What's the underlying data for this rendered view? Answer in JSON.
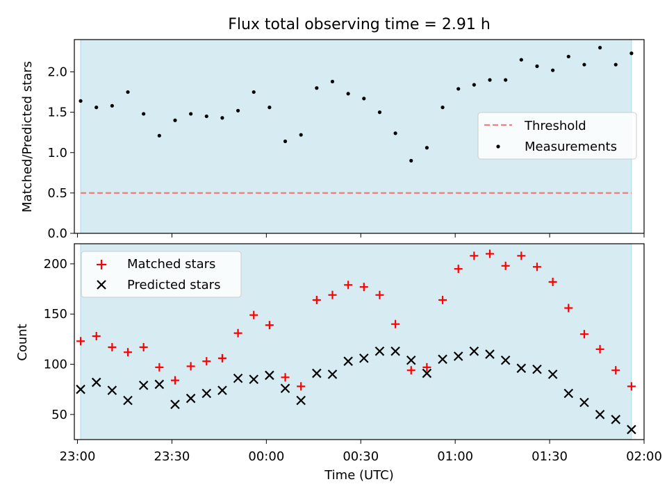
{
  "chart_data": [
    {
      "type": "scatter",
      "title": "Flux total observing time = 2.91 h",
      "xlabel": "",
      "ylabel": "Matched/Predicted stars",
      "xlim": [
        "22:59:00",
        "02:00:00"
      ],
      "ylim": [
        0,
        2.4
      ],
      "yticks": [
        "0.0",
        "0.5",
        "1.0",
        "1.5",
        "2.0"
      ],
      "x_ticks_labels_visible": false,
      "shaded_span": {
        "from": "23:01:00",
        "to": "01:56:00",
        "color": "#add8e6"
      },
      "threshold": {
        "name": "Threshold",
        "value": 0.5,
        "color": "#f08080",
        "style": "dashed"
      },
      "legend": {
        "position": "center-right",
        "entries": [
          "Threshold",
          "Measurements"
        ]
      },
      "series": [
        {
          "name": "Measurements",
          "color": "#000000",
          "marker": "dot",
          "x": [
            "23:01",
            "23:06",
            "23:11",
            "23:16",
            "23:21",
            "23:26",
            "23:31",
            "23:36",
            "23:41",
            "23:46",
            "23:51",
            "23:56",
            "00:01",
            "00:06",
            "00:11",
            "00:16",
            "00:21",
            "00:26",
            "00:31",
            "00:36",
            "00:41",
            "00:46",
            "00:51",
            "00:56",
            "01:01",
            "01:06",
            "01:11",
            "01:16",
            "01:21",
            "01:26",
            "01:31",
            "01:36",
            "01:41",
            "01:46",
            "01:51",
            "01:56"
          ],
          "y": [
            1.64,
            1.56,
            1.58,
            1.75,
            1.48,
            1.21,
            1.4,
            1.48,
            1.45,
            1.43,
            1.52,
            1.75,
            1.56,
            1.14,
            1.22,
            1.8,
            1.88,
            1.73,
            1.67,
            1.5,
            1.24,
            0.9,
            1.06,
            1.56,
            1.79,
            1.84,
            1.9,
            1.9,
            2.15,
            2.07,
            2.02,
            2.19,
            2.09,
            2.3,
            2.09,
            2.23
          ]
        }
      ]
    },
    {
      "type": "scatter",
      "title": "",
      "xlabel": "Time (UTC)",
      "ylabel": "Count",
      "xlim": [
        "22:59:00",
        "02:00:00"
      ],
      "ylim": [
        25,
        220
      ],
      "yticks": [
        "50",
        "100",
        "150",
        "200"
      ],
      "xticks": [
        "23:00",
        "23:30",
        "00:00",
        "00:30",
        "01:00",
        "01:30",
        "02:00"
      ],
      "shaded_span": {
        "from": "23:01:00",
        "to": "01:56:00",
        "color": "#add8e6"
      },
      "legend": {
        "position": "upper-left",
        "entries": [
          "Matched stars",
          "Predicted stars"
        ]
      },
      "series": [
        {
          "name": "Matched stars",
          "color": "#ff0000",
          "marker": "plus",
          "x": [
            "23:01",
            "23:06",
            "23:11",
            "23:16",
            "23:21",
            "23:26",
            "23:31",
            "23:36",
            "23:41",
            "23:46",
            "23:51",
            "23:56",
            "00:01",
            "00:06",
            "00:11",
            "00:16",
            "00:21",
            "00:26",
            "00:31",
            "00:36",
            "00:41",
            "00:46",
            "00:51",
            "00:56",
            "01:01",
            "01:06",
            "01:11",
            "01:16",
            "01:21",
            "01:26",
            "01:31",
            "01:36",
            "01:41",
            "01:46",
            "01:51",
            "01:56"
          ],
          "y": [
            123,
            128,
            117,
            112,
            117,
            97,
            84,
            98,
            103,
            106,
            131,
            149,
            139,
            87,
            78,
            164,
            169,
            179,
            177,
            169,
            140,
            94,
            97,
            164,
            195,
            208,
            210,
            198,
            208,
            197,
            182,
            156,
            130,
            115,
            94,
            78
          ]
        },
        {
          "name": "Predicted stars",
          "color": "#000000",
          "marker": "x",
          "x": [
            "23:01",
            "23:06",
            "23:11",
            "23:16",
            "23:21",
            "23:26",
            "23:31",
            "23:36",
            "23:41",
            "23:46",
            "23:51",
            "23:56",
            "00:01",
            "00:06",
            "00:11",
            "00:16",
            "00:21",
            "00:26",
            "00:31",
            "00:36",
            "00:41",
            "00:46",
            "00:51",
            "00:56",
            "01:01",
            "01:06",
            "01:11",
            "01:16",
            "01:21",
            "01:26",
            "01:31",
            "01:36",
            "01:41",
            "01:46",
            "01:51",
            "01:56"
          ],
          "y": [
            75,
            82,
            74,
            64,
            79,
            80,
            60,
            66,
            71,
            74,
            86,
            85,
            89,
            76,
            64,
            91,
            90,
            103,
            106,
            113,
            113,
            104,
            91,
            105,
            108,
            113,
            110,
            104,
            96,
            95,
            90,
            71,
            62,
            50,
            45,
            35
          ]
        }
      ]
    }
  ]
}
